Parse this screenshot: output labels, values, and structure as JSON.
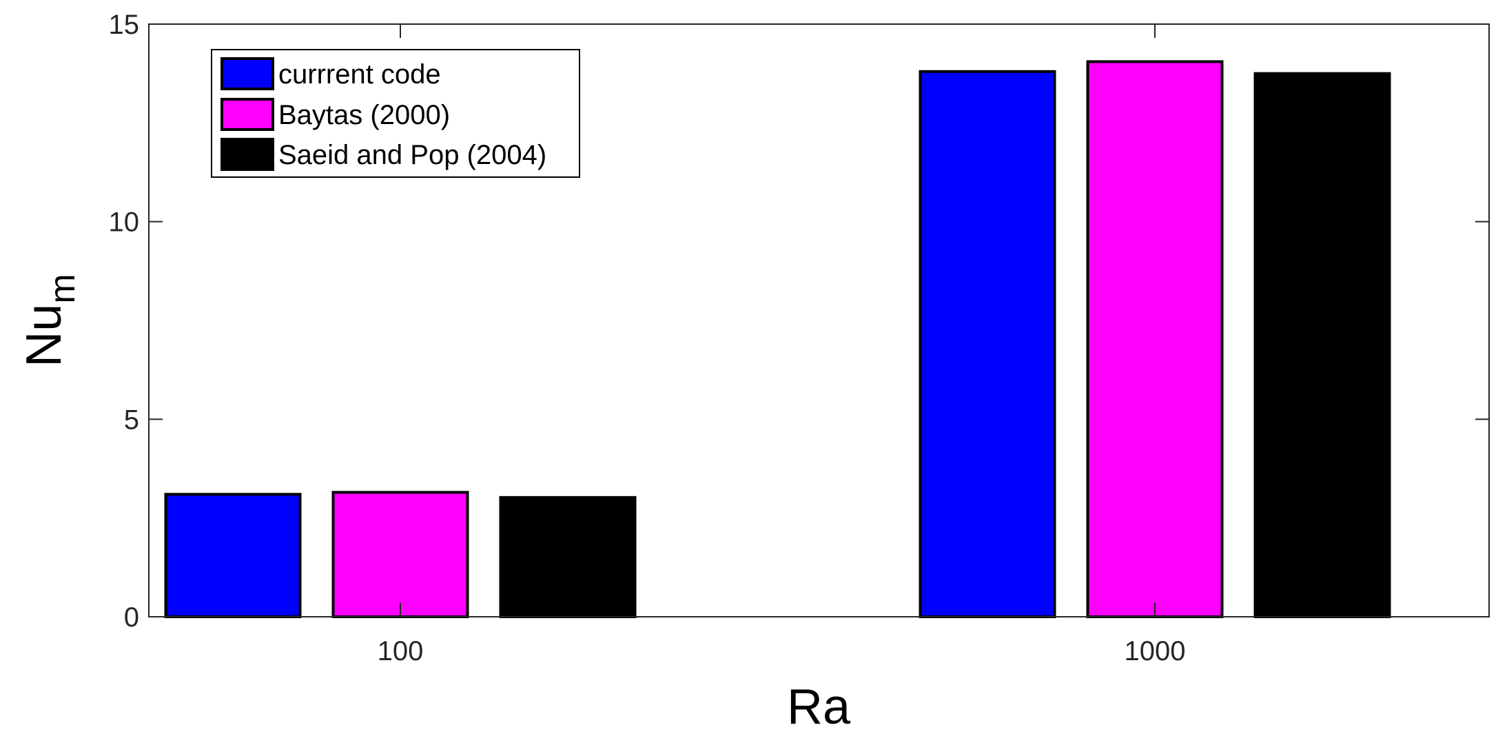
{
  "chart_data": {
    "type": "bar",
    "categories": [
      "100",
      "1000"
    ],
    "series": [
      {
        "name": "currrent code",
        "values": [
          3.1,
          13.8
        ],
        "color": "#0000ff"
      },
      {
        "name": "Baytas (2000)",
        "values": [
          3.15,
          14.05
        ],
        "color": "#ff00ff"
      },
      {
        "name": "Saeid and Pop (2004)",
        "values": [
          3.02,
          13.75
        ],
        "color": "#000000"
      }
    ],
    "title": "",
    "xlabel": "Ra",
    "ylabel": "Nu",
    "ylabel_subscript": "m",
    "ylim": [
      0,
      15
    ],
    "yticks": [
      "0",
      "5",
      "10",
      "15"
    ],
    "grid": false,
    "legend_position": "top-left"
  }
}
